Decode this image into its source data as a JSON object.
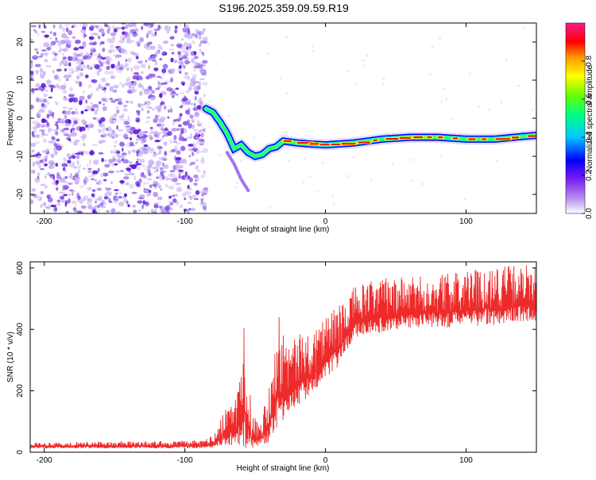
{
  "title": "S196.2025.359.09.59.R19",
  "colors": {
    "snr_line": "#ee2b2b",
    "axis": "#000000",
    "spec_weak": "#c9b6f5",
    "spec_medium": "#8a55e8",
    "spec_strong": "#5a14d8",
    "colormap": [
      "#ff00cc",
      "#ff0000",
      "#ffa500",
      "#ffff00",
      "#00ff00",
      "#00ffff",
      "#0000ff",
      "#8a2be2",
      "#ffffff"
    ]
  },
  "chart_data": [
    {
      "type": "heatmap",
      "name": "spectrogram",
      "xlabel": "Height of straight line (km)",
      "ylabel": "Frequency (Hz)",
      "xlim": [
        -210,
        150
      ],
      "ylim": [
        -25,
        25
      ],
      "xticks": [
        "-200",
        "-100",
        "0",
        "100"
      ],
      "xtick_values": [
        -200,
        -100,
        0,
        100
      ],
      "yticks": [
        "20",
        "10",
        "0",
        "-10",
        "-20"
      ],
      "ytick_values": [
        20,
        10,
        0,
        -10,
        -20
      ],
      "colorbar": {
        "label": "Normalized spectral amplitude",
        "range": [
          0,
          1
        ],
        "ticks": [
          "0.0",
          "0.2",
          "0.4",
          "0.6",
          "0.8"
        ],
        "tick_values": [
          0,
          0.2,
          0.4,
          0.6,
          0.8
        ]
      },
      "noise_region": {
        "x_range": [
          -210,
          -85
        ],
        "y_range": [
          -25,
          25
        ]
      },
      "signal_track": [
        {
          "x": -85,
          "f": 2.5
        },
        {
          "x": -80,
          "f": 1.5
        },
        {
          "x": -75,
          "f": -1
        },
        {
          "x": -70,
          "f": -4
        },
        {
          "x": -65,
          "f": -8
        },
        {
          "x": -60,
          "f": -7
        },
        {
          "x": -55,
          "f": -9
        },
        {
          "x": -50,
          "f": -10
        },
        {
          "x": -45,
          "f": -9.5
        },
        {
          "x": -40,
          "f": -8
        },
        {
          "x": -35,
          "f": -7.5
        },
        {
          "x": -30,
          "f": -6
        },
        {
          "x": -20,
          "f": -6.5
        },
        {
          "x": -10,
          "f": -6.8
        },
        {
          "x": 0,
          "f": -7
        },
        {
          "x": 20,
          "f": -6.5
        },
        {
          "x": 40,
          "f": -5.5
        },
        {
          "x": 60,
          "f": -5
        },
        {
          "x": 80,
          "f": -5
        },
        {
          "x": 100,
          "f": -5.5
        },
        {
          "x": 120,
          "f": -5.5
        },
        {
          "x": 140,
          "f": -4.8
        },
        {
          "x": 150,
          "f": -4.5
        }
      ],
      "secondary_track": [
        {
          "x": -70,
          "f": -9
        },
        {
          "x": -65,
          "f": -12
        },
        {
          "x": -60,
          "f": -16
        },
        {
          "x": -55,
          "f": -19
        }
      ]
    },
    {
      "type": "line",
      "name": "snr",
      "xlabel": "Height of straight line (km)",
      "ylabel": "SNR (10 * v/v)",
      "xlim": [
        -210,
        150
      ],
      "ylim": [
        0,
        620
      ],
      "xticks": [
        "-200",
        "-100",
        "0",
        "100"
      ],
      "xtick_values": [
        -200,
        -100,
        0,
        100
      ],
      "yticks": [
        "600",
        "400",
        "200",
        "0"
      ],
      "ytick_values": [
        600,
        400,
        200,
        0
      ],
      "envelope": [
        {
          "x": -210,
          "base": 18,
          "spread": 14
        },
        {
          "x": -90,
          "base": 20,
          "spread": 18
        },
        {
          "x": -80,
          "base": 25,
          "spread": 30
        },
        {
          "x": -70,
          "base": 60,
          "spread": 90
        },
        {
          "x": -62,
          "base": 80,
          "spread": 150
        },
        {
          "x": -57,
          "base": 130,
          "spread": 300
        },
        {
          "x": -52,
          "base": 40,
          "spread": 80
        },
        {
          "x": -45,
          "base": 50,
          "spread": 60
        },
        {
          "x": -40,
          "base": 90,
          "spread": 180
        },
        {
          "x": -35,
          "base": 180,
          "spread": 260
        },
        {
          "x": -25,
          "base": 200,
          "spread": 170
        },
        {
          "x": -10,
          "base": 250,
          "spread": 150
        },
        {
          "x": 0,
          "base": 300,
          "spread": 160
        },
        {
          "x": 10,
          "base": 340,
          "spread": 140
        },
        {
          "x": 20,
          "base": 420,
          "spread": 120
        },
        {
          "x": 40,
          "base": 440,
          "spread": 130
        },
        {
          "x": 60,
          "base": 450,
          "spread": 120
        },
        {
          "x": 80,
          "base": 455,
          "spread": 125
        },
        {
          "x": 100,
          "base": 460,
          "spread": 130
        },
        {
          "x": 120,
          "base": 470,
          "spread": 140
        },
        {
          "x": 150,
          "base": 480,
          "spread": 130
        }
      ],
      "spikes": [
        {
          "x": -58,
          "y": 405
        },
        {
          "x": -33,
          "y": 440
        },
        {
          "x": -36,
          "y": 320
        }
      ]
    }
  ]
}
